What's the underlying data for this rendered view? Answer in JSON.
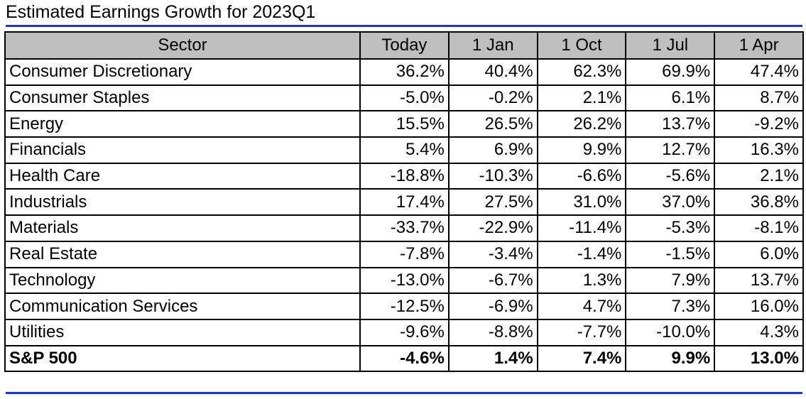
{
  "title": "Estimated Earnings Growth for 2023Q1",
  "colors": {
    "rule": "#1a35d6",
    "header_bg": "#bfbfbf",
    "border": "#000000"
  },
  "table": {
    "headers": [
      "Sector",
      "Today",
      "1 Jan",
      "1 Oct",
      "1 Jul",
      "1 Apr"
    ],
    "rows": [
      {
        "sector": "Consumer Discretionary",
        "values": [
          "36.2%",
          "40.4%",
          "62.3%",
          "69.9%",
          "47.4%"
        ]
      },
      {
        "sector": "Consumer Staples",
        "values": [
          "-5.0%",
          "-0.2%",
          "2.1%",
          "6.1%",
          "8.7%"
        ]
      },
      {
        "sector": "Energy",
        "values": [
          "15.5%",
          "26.5%",
          "26.2%",
          "13.7%",
          "-9.2%"
        ]
      },
      {
        "sector": "Financials",
        "values": [
          "5.4%",
          "6.9%",
          "9.9%",
          "12.7%",
          "16.3%"
        ]
      },
      {
        "sector": "Health Care",
        "values": [
          "-18.8%",
          "-10.3%",
          "-6.6%",
          "-5.6%",
          "2.1%"
        ]
      },
      {
        "sector": "Industrials",
        "values": [
          "17.4%",
          "27.5%",
          "31.0%",
          "37.0%",
          "36.8%"
        ]
      },
      {
        "sector": "Materials",
        "values": [
          "-33.7%",
          "-22.9%",
          "-11.4%",
          "-5.3%",
          "-8.1%"
        ]
      },
      {
        "sector": "Real Estate",
        "values": [
          "-7.8%",
          "-3.4%",
          "-1.4%",
          "-1.5%",
          "6.0%"
        ]
      },
      {
        "sector": "Technology",
        "values": [
          "-13.0%",
          "-6.7%",
          "1.3%",
          "7.9%",
          "13.7%"
        ]
      },
      {
        "sector": "Communication Services",
        "values": [
          "-12.5%",
          "-6.9%",
          "4.7%",
          "7.3%",
          "16.0%"
        ]
      },
      {
        "sector": "Utilities",
        "values": [
          "-9.6%",
          "-8.8%",
          "-7.7%",
          "-10.0%",
          "4.3%"
        ]
      }
    ],
    "total": {
      "sector": "S&P 500",
      "values": [
        "-4.6%",
        "1.4%",
        "7.4%",
        "9.9%",
        "13.0%"
      ]
    }
  }
}
